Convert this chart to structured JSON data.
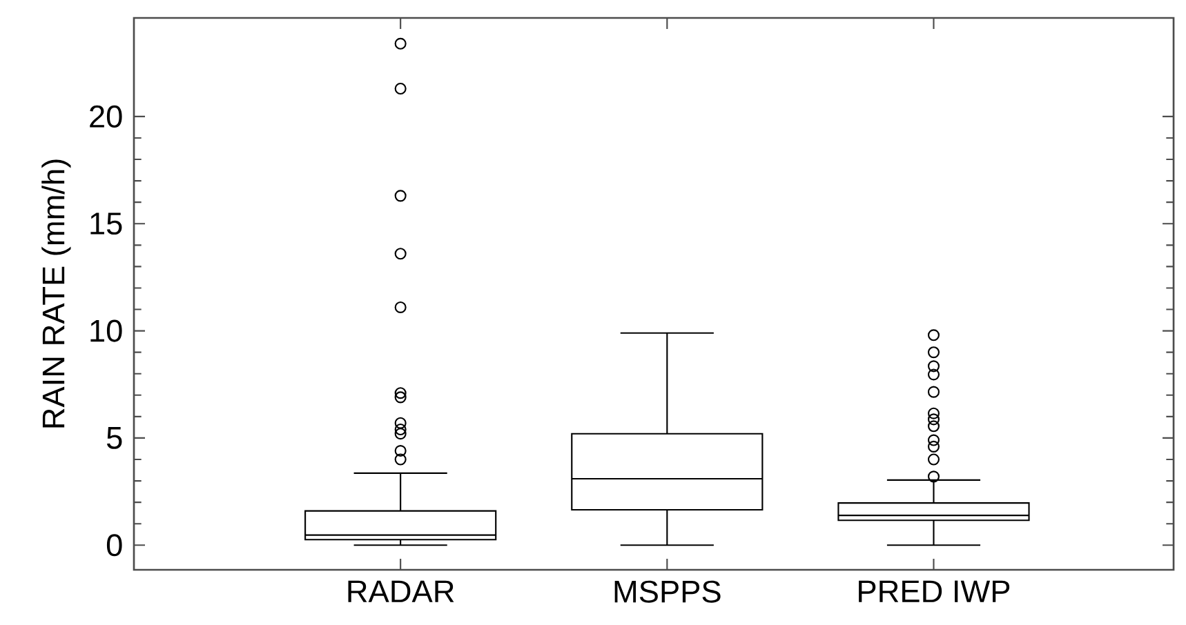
{
  "chart_data": {
    "type": "box",
    "ylabel": "RAIN RATE (mm/h)",
    "categories": [
      "RADAR",
      "MSPPS",
      "PRED IWP"
    ],
    "color": "#000000",
    "marker": "circle",
    "boxes": [
      {
        "low": 0,
        "q1": 0.26,
        "median": 0.47,
        "q3": 1.6,
        "high": 3.36,
        "outliers": [
          23.4,
          21.3,
          16.3,
          13.6,
          11.1,
          7.1,
          6.9,
          5.7,
          5.4,
          5.2,
          4.4,
          4.0
        ]
      },
      {
        "low": 0,
        "q1": 1.65,
        "median": 3.1,
        "q3": 5.2,
        "high": 9.9
      },
      {
        "low": 0,
        "q1": 1.16,
        "median": 1.39,
        "q3": 1.97,
        "high": 3.04,
        "outliers": [
          9.8,
          9.0,
          8.35,
          7.96,
          7.15,
          6.15,
          5.87,
          5.55,
          4.9,
          4.6,
          4.0,
          3.2
        ]
      }
    ],
    "ylim": [
      -1.15,
      24.6
    ],
    "yticks": [
      0,
      5,
      10,
      15,
      20
    ]
  }
}
